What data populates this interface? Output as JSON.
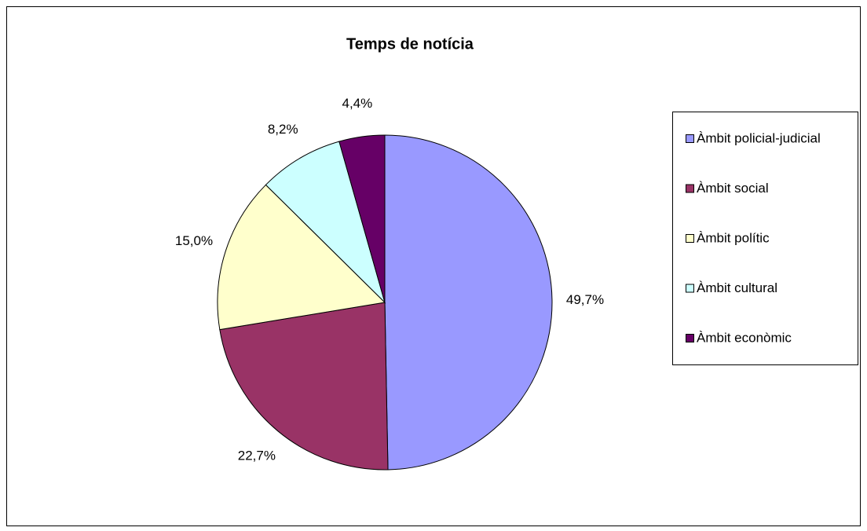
{
  "chart_data": {
    "type": "pie",
    "title": "Temps de notícia",
    "categories": [
      "Àmbit policial-judicial",
      "Àmbit social",
      "Àmbit polític",
      "Àmbit cultural",
      "Àmbit econòmic"
    ],
    "values": [
      49.7,
      22.7,
      15.0,
      8.2,
      4.4
    ],
    "value_labels": [
      "49,7%",
      "22,7%",
      "15,0%",
      "8,2%",
      "4,4%"
    ],
    "colors": [
      "#9999ff",
      "#993366",
      "#ffffcc",
      "#ccffff",
      "#660066"
    ],
    "legend": "right"
  }
}
